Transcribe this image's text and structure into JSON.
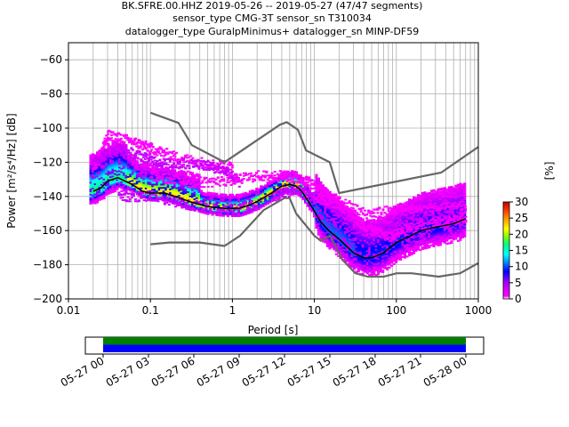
{
  "title_lines": [
    "BK.SFRE.00.HHZ   2019-05-26 -- 2019-05-27  (47/47 segments)",
    "sensor_type CMG-3T sensor_sn T310034",
    "datalogger_type GuralpMinimus+ datalogger_sn MINP-DF59"
  ],
  "chart_data": [
    {
      "type": "heatmap",
      "subtype": "probabilistic-power-spectral-density",
      "xlabel": "Period [s]",
      "ylabel": "Power [m²/s⁴/Hz] [dB]",
      "xscale": "log",
      "xlim": [
        0.01,
        1000
      ],
      "ylim": [
        -200,
        -50
      ],
      "grid": true,
      "x_tick_labels": [
        "0.01",
        "0.1",
        "1",
        "10",
        "100",
        "1000"
      ],
      "y_ticks": [
        -200,
        -180,
        -160,
        -140,
        -120,
        -100,
        -80,
        -60
      ],
      "colorbar": {
        "label": "[%]",
        "range": [
          0,
          30
        ],
        "ticks": [
          0,
          5,
          10,
          15,
          20,
          25,
          30
        ]
      },
      "series": [
        {
          "name": "NHNM",
          "color": "#666666",
          "points": [
            [
              0.1,
              -91
            ],
            [
              0.22,
              -97
            ],
            [
              0.32,
              -110
            ],
            [
              0.8,
              -120
            ],
            [
              3.8,
              -98
            ],
            [
              4.6,
              -96.5
            ],
            [
              6.3,
              -101
            ],
            [
              7.9,
              -113
            ],
            [
              15.4,
              -120
            ],
            [
              20,
              -138
            ],
            [
              354,
              -126
            ],
            [
              1000,
              -111
            ]
          ]
        },
        {
          "name": "NLNM",
          "color": "#666666",
          "points": [
            [
              0.1,
              -168
            ],
            [
              0.17,
              -167
            ],
            [
              0.4,
              -167
            ],
            [
              0.8,
              -169
            ],
            [
              1.24,
              -163
            ],
            [
              2.4,
              -148
            ],
            [
              4.3,
              -141
            ],
            [
              5,
              -141
            ],
            [
              6,
              -150
            ],
            [
              10,
              -163
            ],
            [
              12,
              -166
            ],
            [
              15.6,
              -163
            ],
            [
              21.9,
              -177
            ],
            [
              31.6,
              -185
            ],
            [
              45,
              -187
            ],
            [
              70,
              -187
            ],
            [
              101,
              -185
            ],
            [
              154,
              -185
            ],
            [
              328,
              -187
            ],
            [
              600,
              -185
            ],
            [
              1000,
              -179
            ]
          ]
        },
        {
          "name": "mode",
          "color": "#000000",
          "points": [
            [
              0.02,
              -137
            ],
            [
              0.025,
              -135
            ],
            [
              0.03,
              -131
            ],
            [
              0.04,
              -129
            ],
            [
              0.06,
              -133
            ],
            [
              0.08,
              -137
            ],
            [
              0.1,
              -138
            ],
            [
              0.15,
              -138
            ],
            [
              0.2,
              -140
            ],
            [
              0.3,
              -143
            ],
            [
              0.5,
              -146
            ],
            [
              0.8,
              -147
            ],
            [
              1.2,
              -147
            ],
            [
              1.6,
              -145
            ],
            [
              2,
              -143
            ],
            [
              3,
              -138
            ],
            [
              4,
              -134
            ],
            [
              5,
              -133
            ],
            [
              6,
              -134
            ],
            [
              7,
              -137
            ],
            [
              9,
              -145
            ],
            [
              12,
              -155
            ],
            [
              15,
              -160
            ],
            [
              20,
              -165
            ],
            [
              30,
              -173
            ],
            [
              40,
              -176
            ],
            [
              50,
              -176
            ],
            [
              70,
              -173
            ],
            [
              100,
              -167
            ],
            [
              150,
              -163
            ],
            [
              200,
              -160
            ],
            [
              300,
              -158
            ],
            [
              500,
              -156
            ],
            [
              700,
              -153
            ]
          ]
        }
      ],
      "inset": {
        "type": "timeline",
        "x_tick_labels": [
          "05-27 00",
          "05-27 03",
          "05-27 06",
          "05-27 09",
          "05-27 12",
          "05-27 15",
          "05-27 18",
          "05-27 21",
          "05-28 00"
        ],
        "bars": [
          {
            "color": "#008000",
            "coverage": [
              0,
              1
            ]
          },
          {
            "color": "#0000ff",
            "coverage": [
              0,
              1
            ]
          }
        ]
      }
    }
  ]
}
